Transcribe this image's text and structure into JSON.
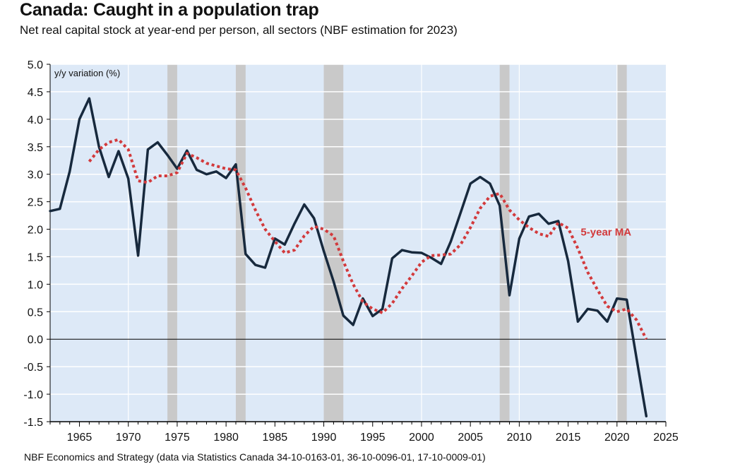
{
  "header": {
    "title": "Canada: Caught in a population trap",
    "subtitle": "Net real capital stock at year-end per person, all sectors (NBF estimation for 2023)"
  },
  "footer": {
    "source": "NBF Economics and Strategy (data via Statistics Canada 34-10-0163-01, 36-10-0096-01, 17-10-0009-01)"
  },
  "colors": {
    "plot_background": "#dde9f7",
    "recession": "#c9c9c9",
    "series_main": "#17293d",
    "series_ma": "#d23a3c",
    "gridline": "#ffffff",
    "zero_line": "#000000"
  },
  "chart_data": {
    "type": "line",
    "title": "Canada: Caught in a population trap",
    "subtitle": "Net real capital stock at year-end per person, all sectors (NBF estimation for 2023)",
    "xlabel": "",
    "ylabel": "y/y variation (%)",
    "xlim": [
      1962,
      2025
    ],
    "ylim": [
      -1.5,
      5.0
    ],
    "x_ticks": [
      1965,
      1970,
      1975,
      1980,
      1985,
      1990,
      1995,
      2000,
      2005,
      2010,
      2015,
      2020,
      2025
    ],
    "y_ticks": [
      -1.5,
      -1.0,
      -0.5,
      0.0,
      0.5,
      1.0,
      1.5,
      2.0,
      2.5,
      3.0,
      3.5,
      4.0,
      4.5,
      5.0
    ],
    "y_tick_labels": [
      "-1.5",
      "-1.0",
      "-0.5",
      "0.0",
      "0.5",
      "1.0",
      "1.5",
      "2.0",
      "2.5",
      "3.0",
      "3.5",
      "4.0",
      "4.5",
      "5.0"
    ],
    "grid": true,
    "recessions": [
      [
        1974,
        1975
      ],
      [
        1981,
        1982
      ],
      [
        1990,
        1992
      ],
      [
        2008,
        2009
      ],
      [
        2020,
        2021
      ]
    ],
    "series": [
      {
        "name": "Net real capital stock per person, y/y %",
        "style": "solid",
        "x": [
          1962,
          1963,
          1964,
          1965,
          1966,
          1967,
          1968,
          1969,
          1970,
          1971,
          1972,
          1973,
          1974,
          1975,
          1976,
          1977,
          1978,
          1979,
          1980,
          1981,
          1982,
          1983,
          1984,
          1985,
          1986,
          1987,
          1988,
          1989,
          1990,
          1991,
          1992,
          1993,
          1994,
          1995,
          1996,
          1997,
          1998,
          1999,
          2000,
          2001,
          2002,
          2003,
          2004,
          2005,
          2006,
          2007,
          2008,
          2009,
          2010,
          2011,
          2012,
          2013,
          2014,
          2015,
          2016,
          2017,
          2018,
          2019,
          2020,
          2021,
          2022,
          2023
        ],
        "values": [
          2.33,
          2.37,
          3.05,
          4.0,
          4.38,
          3.5,
          2.95,
          3.42,
          2.92,
          1.52,
          3.45,
          3.58,
          3.35,
          3.1,
          3.43,
          3.08,
          3.0,
          3.05,
          2.93,
          3.18,
          1.55,
          1.35,
          1.3,
          1.83,
          1.72,
          2.1,
          2.45,
          2.2,
          1.6,
          1.05,
          0.43,
          0.26,
          0.74,
          0.42,
          0.55,
          1.47,
          1.62,
          1.58,
          1.57,
          1.48,
          1.37,
          1.78,
          2.3,
          2.83,
          2.95,
          2.83,
          2.43,
          0.8,
          1.83,
          2.23,
          2.28,
          2.1,
          2.15,
          1.42,
          0.32,
          0.55,
          0.52,
          0.32,
          0.74,
          0.72,
          -0.35,
          -1.4
        ]
      },
      {
        "name": "5-year MA",
        "style": "dotted",
        "x": [
          1966,
          1967,
          1968,
          1969,
          1970,
          1971,
          1972,
          1973,
          1974,
          1975,
          1976,
          1977,
          1978,
          1979,
          1980,
          1981,
          1982,
          1983,
          1984,
          1985,
          1986,
          1987,
          1988,
          1989,
          1990,
          1991,
          1992,
          1993,
          1994,
          1995,
          1996,
          1997,
          1998,
          1999,
          2000,
          2001,
          2002,
          2003,
          2004,
          2005,
          2006,
          2007,
          2008,
          2009,
          2010,
          2011,
          2012,
          2013,
          2014,
          2015,
          2016,
          2017,
          2018,
          2019,
          2020,
          2021,
          2022,
          2023
        ],
        "values": [
          3.23,
          3.45,
          3.58,
          3.63,
          3.45,
          2.88,
          2.85,
          2.97,
          2.97,
          3.03,
          3.38,
          3.3,
          3.2,
          3.15,
          3.1,
          3.08,
          2.75,
          2.35,
          2.0,
          1.78,
          1.57,
          1.62,
          1.88,
          2.05,
          2.0,
          1.88,
          1.42,
          1.0,
          0.68,
          0.55,
          0.48,
          0.65,
          0.92,
          1.15,
          1.4,
          1.52,
          1.53,
          1.55,
          1.72,
          2.03,
          2.38,
          2.6,
          2.65,
          2.35,
          2.17,
          2.03,
          1.92,
          1.87,
          2.12,
          2.02,
          1.65,
          1.22,
          0.9,
          0.6,
          0.5,
          0.55,
          0.35,
          0.0
        ]
      }
    ],
    "annotations": [
      {
        "text": "5-year MA",
        "x": 2016,
        "y": 1.95
      },
      {
        "text": "y/y variation (%)",
        "position": "top-left"
      }
    ]
  }
}
